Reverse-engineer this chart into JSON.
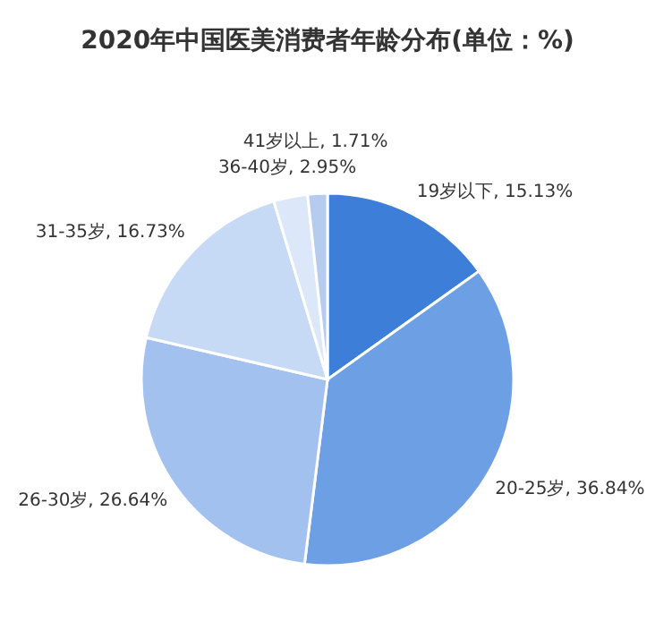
{
  "chart_data": {
    "type": "pie",
    "title": "2020年中国医美消费者年龄分布(单位：%)",
    "categories": [
      "19岁以下",
      "20-25岁",
      "26-30岁",
      "31-35岁",
      "36-40岁",
      "41岁以上"
    ],
    "values": [
      15.13,
      36.84,
      26.64,
      16.73,
      2.95,
      1.71
    ],
    "value_labels": [
      "15.13%",
      "36.84%",
      "26.64%",
      "16.73%",
      "2.95%",
      "1.71%"
    ],
    "colors": [
      "#3d7ed9",
      "#6c9fe4",
      "#a3c1ef",
      "#c6d9f5",
      "#dce8f9",
      "#b5ccef"
    ]
  }
}
